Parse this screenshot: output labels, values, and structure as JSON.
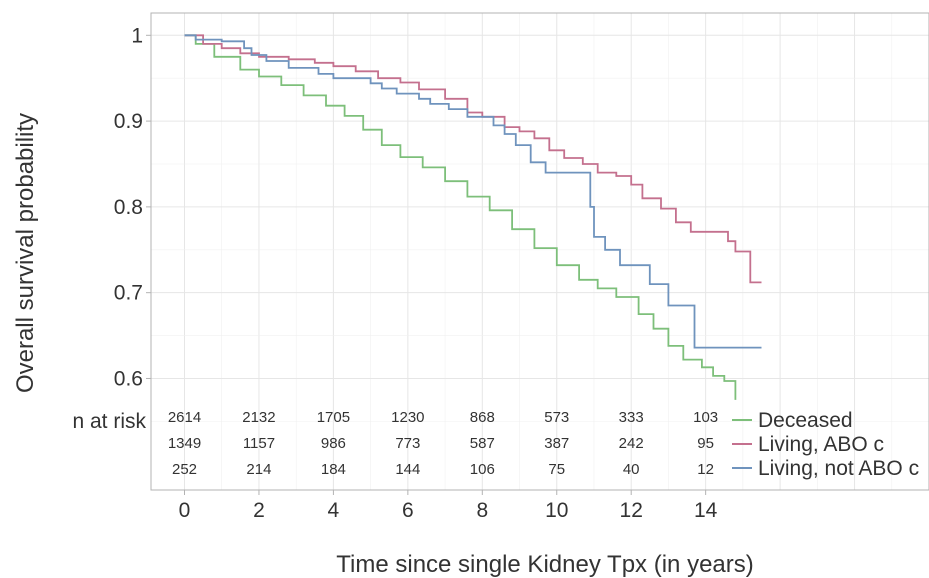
{
  "chart_data": {
    "type": "line",
    "xlabel": "Time since single Kidney Tpx (in years)",
    "ylabel": "Overall survival probability",
    "xlim": [
      -0.9,
      20
    ],
    "ylim": [
      0.47,
      1.026
    ],
    "x_ticks": [
      0,
      2,
      4,
      6,
      8,
      10,
      12,
      14
    ],
    "x_tick_labels": [
      "0",
      "2",
      "4",
      "6",
      "8",
      "10",
      "12",
      "14"
    ],
    "y_ticks": [
      0.6,
      0.7,
      0.8,
      0.9,
      1.0
    ],
    "y_tick_labels": [
      "0.6",
      "0.7",
      "0.8",
      "0.9",
      "1"
    ],
    "grid": true,
    "legend_position": "right",
    "series": [
      {
        "name": "Deceased",
        "color": "#7dbf7a",
        "points": [
          [
            0,
            1.0
          ],
          [
            0.3,
            0.99
          ],
          [
            0.8,
            0.975
          ],
          [
            1.5,
            0.96
          ],
          [
            2,
            0.952
          ],
          [
            2.6,
            0.942
          ],
          [
            3.2,
            0.93
          ],
          [
            3.8,
            0.918
          ],
          [
            4.3,
            0.906
          ],
          [
            4.8,
            0.89
          ],
          [
            5.3,
            0.872
          ],
          [
            5.8,
            0.858
          ],
          [
            6.4,
            0.846
          ],
          [
            7,
            0.83
          ],
          [
            7.6,
            0.812
          ],
          [
            8.2,
            0.796
          ],
          [
            8.8,
            0.774
          ],
          [
            9.4,
            0.752
          ],
          [
            10,
            0.732
          ],
          [
            10.6,
            0.715
          ],
          [
            11.1,
            0.705
          ],
          [
            11.6,
            0.695
          ],
          [
            12.2,
            0.675
          ],
          [
            12.6,
            0.658
          ],
          [
            13,
            0.638
          ],
          [
            13.4,
            0.622
          ],
          [
            13.9,
            0.613
          ],
          [
            14.2,
            0.603
          ],
          [
            14.5,
            0.597
          ],
          [
            14.8,
            0.575
          ]
        ],
        "risk_table": [
          "2614",
          "2132",
          "1705",
          "1230",
          "868",
          "573",
          "333",
          "103"
        ]
      },
      {
        "name": "Living, ABO c",
        "color": "#c4708e",
        "points": [
          [
            0,
            1.0
          ],
          [
            0.5,
            0.99
          ],
          [
            1,
            0.985
          ],
          [
            1.5,
            0.979
          ],
          [
            2,
            0.975
          ],
          [
            2.8,
            0.972
          ],
          [
            3.5,
            0.968
          ],
          [
            4,
            0.964
          ],
          [
            4.6,
            0.958
          ],
          [
            5.2,
            0.95
          ],
          [
            5.8,
            0.945
          ],
          [
            6.3,
            0.937
          ],
          [
            7,
            0.926
          ],
          [
            7.6,
            0.91
          ],
          [
            8,
            0.905
          ],
          [
            8.6,
            0.893
          ],
          [
            9,
            0.888
          ],
          [
            9.4,
            0.88
          ],
          [
            9.8,
            0.866
          ],
          [
            10.2,
            0.857
          ],
          [
            10.7,
            0.85
          ],
          [
            11.1,
            0.84
          ],
          [
            11.6,
            0.836
          ],
          [
            12,
            0.826
          ],
          [
            12.3,
            0.81
          ],
          [
            12.8,
            0.798
          ],
          [
            13.2,
            0.782
          ],
          [
            13.6,
            0.771
          ],
          [
            14,
            0.771
          ],
          [
            14.4,
            0.771
          ],
          [
            14.6,
            0.76
          ],
          [
            14.8,
            0.748
          ],
          [
            15.1,
            0.748
          ],
          [
            15.2,
            0.712
          ],
          [
            15.5,
            0.712
          ]
        ],
        "risk_table": [
          "1349",
          "1157",
          "986",
          "773",
          "587",
          "387",
          "242",
          "95"
        ]
      },
      {
        "name": "Living, not ABO c",
        "color": "#6f93bd",
        "points": [
          [
            0,
            1.0
          ],
          [
            0.3,
            0.995
          ],
          [
            1,
            0.993
          ],
          [
            1.6,
            0.985
          ],
          [
            1.8,
            0.977
          ],
          [
            2.2,
            0.97
          ],
          [
            2.8,
            0.962
          ],
          [
            3.6,
            0.955
          ],
          [
            4,
            0.95
          ],
          [
            5,
            0.944
          ],
          [
            5.3,
            0.938
          ],
          [
            5.7,
            0.932
          ],
          [
            6.3,
            0.926
          ],
          [
            6.6,
            0.92
          ],
          [
            7.1,
            0.914
          ],
          [
            7.6,
            0.905
          ],
          [
            8.3,
            0.895
          ],
          [
            8.6,
            0.885
          ],
          [
            8.9,
            0.872
          ],
          [
            9.3,
            0.852
          ],
          [
            9.7,
            0.84
          ],
          [
            10.3,
            0.84
          ],
          [
            10.8,
            0.84
          ],
          [
            10.9,
            0.8
          ],
          [
            11,
            0.765
          ],
          [
            11.3,
            0.75
          ],
          [
            11.7,
            0.732
          ],
          [
            12.3,
            0.732
          ],
          [
            12.5,
            0.71
          ],
          [
            13,
            0.685
          ],
          [
            13.6,
            0.685
          ],
          [
            13.7,
            0.636
          ],
          [
            14.5,
            0.636
          ],
          [
            15.5,
            0.636
          ]
        ],
        "risk_table": [
          "252",
          "214",
          "184",
          "144",
          "106",
          "75",
          "40",
          "12"
        ]
      }
    ],
    "risk_table_label": "n at risk",
    "risk_table_times": [
      0,
      2,
      4,
      6,
      8,
      10,
      12,
      14
    ]
  }
}
